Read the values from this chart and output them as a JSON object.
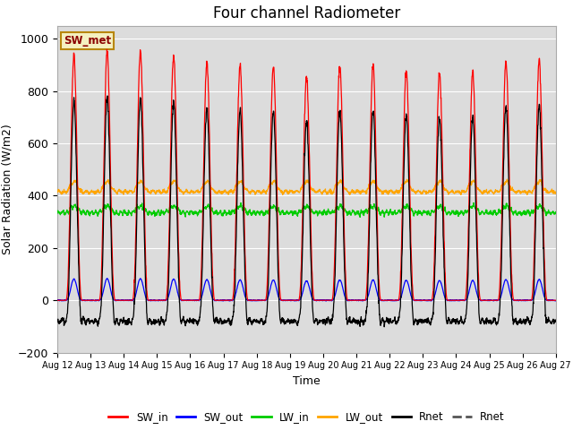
{
  "title": "Four channel Radiometer",
  "xlabel": "Time",
  "ylabel": "Solar Radiation (W/m2)",
  "ylim": [
    -200,
    1050
  ],
  "yticks": [
    -200,
    0,
    200,
    400,
    600,
    800,
    1000
  ],
  "background_color": "#dcdcdc",
  "legend_label": "SW_met",
  "num_days": 15,
  "colors": {
    "SW_in": "#ff0000",
    "SW_out": "#0000ff",
    "LW_in": "#00cc00",
    "LW_out": "#ffa500",
    "Rnet": "#000000"
  },
  "SW_in_peaks": [
    940,
    950,
    950,
    935,
    910,
    900,
    900,
    855,
    900,
    900,
    880,
    870,
    870,
    915,
    920
  ],
  "LW_out_base": 415,
  "LW_in_base": 335,
  "Rnet_night": -100,
  "xtick_labels": [
    "Aug 12",
    "Aug 13",
    "Aug 14",
    "Aug 15",
    "Aug 16",
    "Aug 17",
    "Aug 18",
    "Aug 19",
    "Aug 20",
    "Aug 21",
    "Aug 22",
    "Aug 23",
    "Aug 24",
    "Aug 25",
    "Aug 26",
    "Aug 27"
  ]
}
